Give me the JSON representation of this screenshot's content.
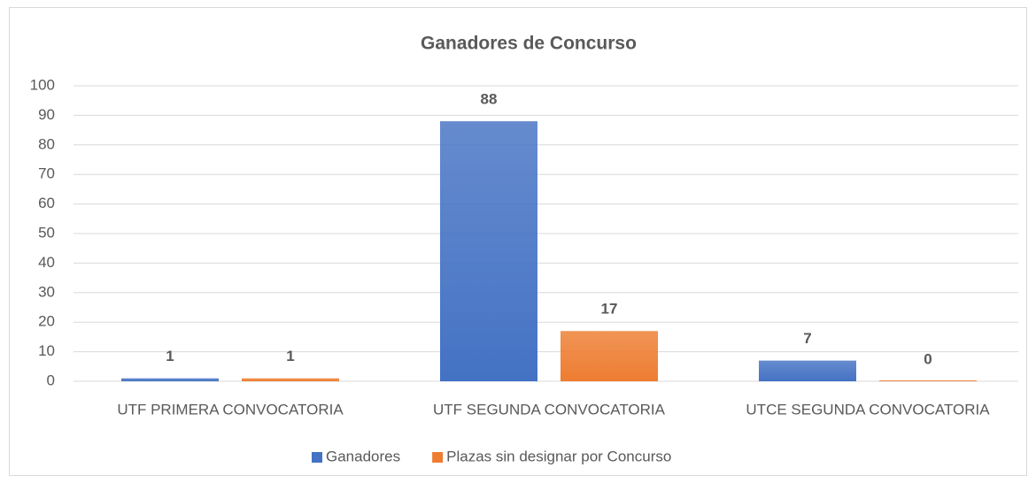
{
  "chart_data": {
    "type": "bar",
    "title": "Ganadores de Concurso",
    "categories": [
      "UTF PRIMERA CONVOCATORIA",
      "UTF SEGUNDA CONVOCATORIA",
      "UTCE SEGUNDA CONVOCATORIA"
    ],
    "series": [
      {
        "name": "Ganadores",
        "color": "#4472c4",
        "values": [
          1,
          88,
          7
        ]
      },
      {
        "name": "Plazas sin designar por Concurso",
        "color": "#ed7d31",
        "values": [
          1,
          17,
          0
        ]
      }
    ],
    "ylim": [
      0,
      100
    ],
    "yticks": [
      0,
      10,
      20,
      30,
      40,
      50,
      60,
      70,
      80,
      90,
      100
    ],
    "grid": true,
    "legend": "bottom"
  }
}
